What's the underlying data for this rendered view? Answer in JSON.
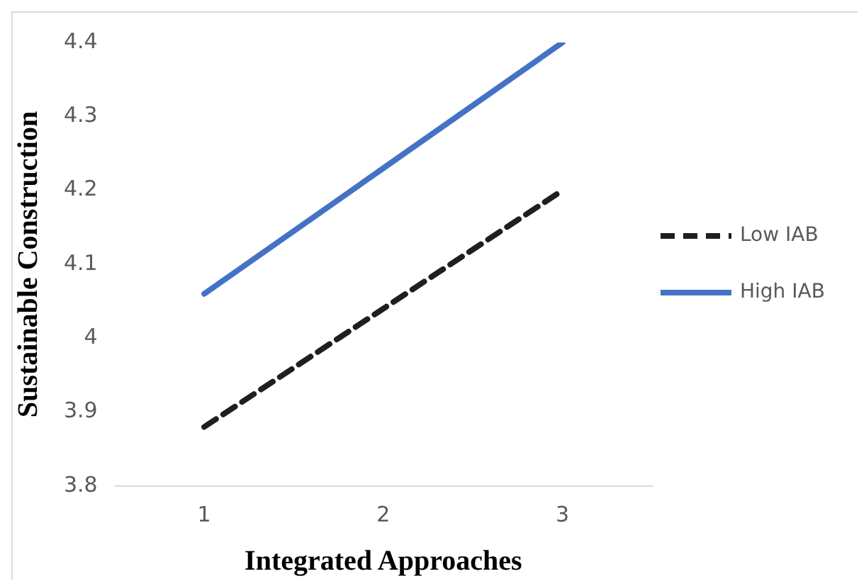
{
  "chart_data": {
    "type": "line",
    "xlabel": "Integrated Approaches",
    "ylabel": "Sustainable Construction",
    "categories": [
      "1",
      "2",
      "3"
    ],
    "series": [
      {
        "name": "Low IAB",
        "color": "#1f1f1f",
        "values": [
          3.88,
          4.04,
          4.2
        ],
        "line_style": "dashed"
      },
      {
        "name": "High IAB",
        "color": "#4472c4",
        "values": [
          4.06,
          4.23,
          4.4
        ],
        "line_style": "solid"
      }
    ],
    "ylim": [
      3.8,
      4.4
    ],
    "yticks": [
      3.8,
      3.9,
      4,
      4.1,
      4.2,
      4.3,
      4.4
    ],
    "grid": false,
    "legend": "right",
    "marker": "none"
  }
}
